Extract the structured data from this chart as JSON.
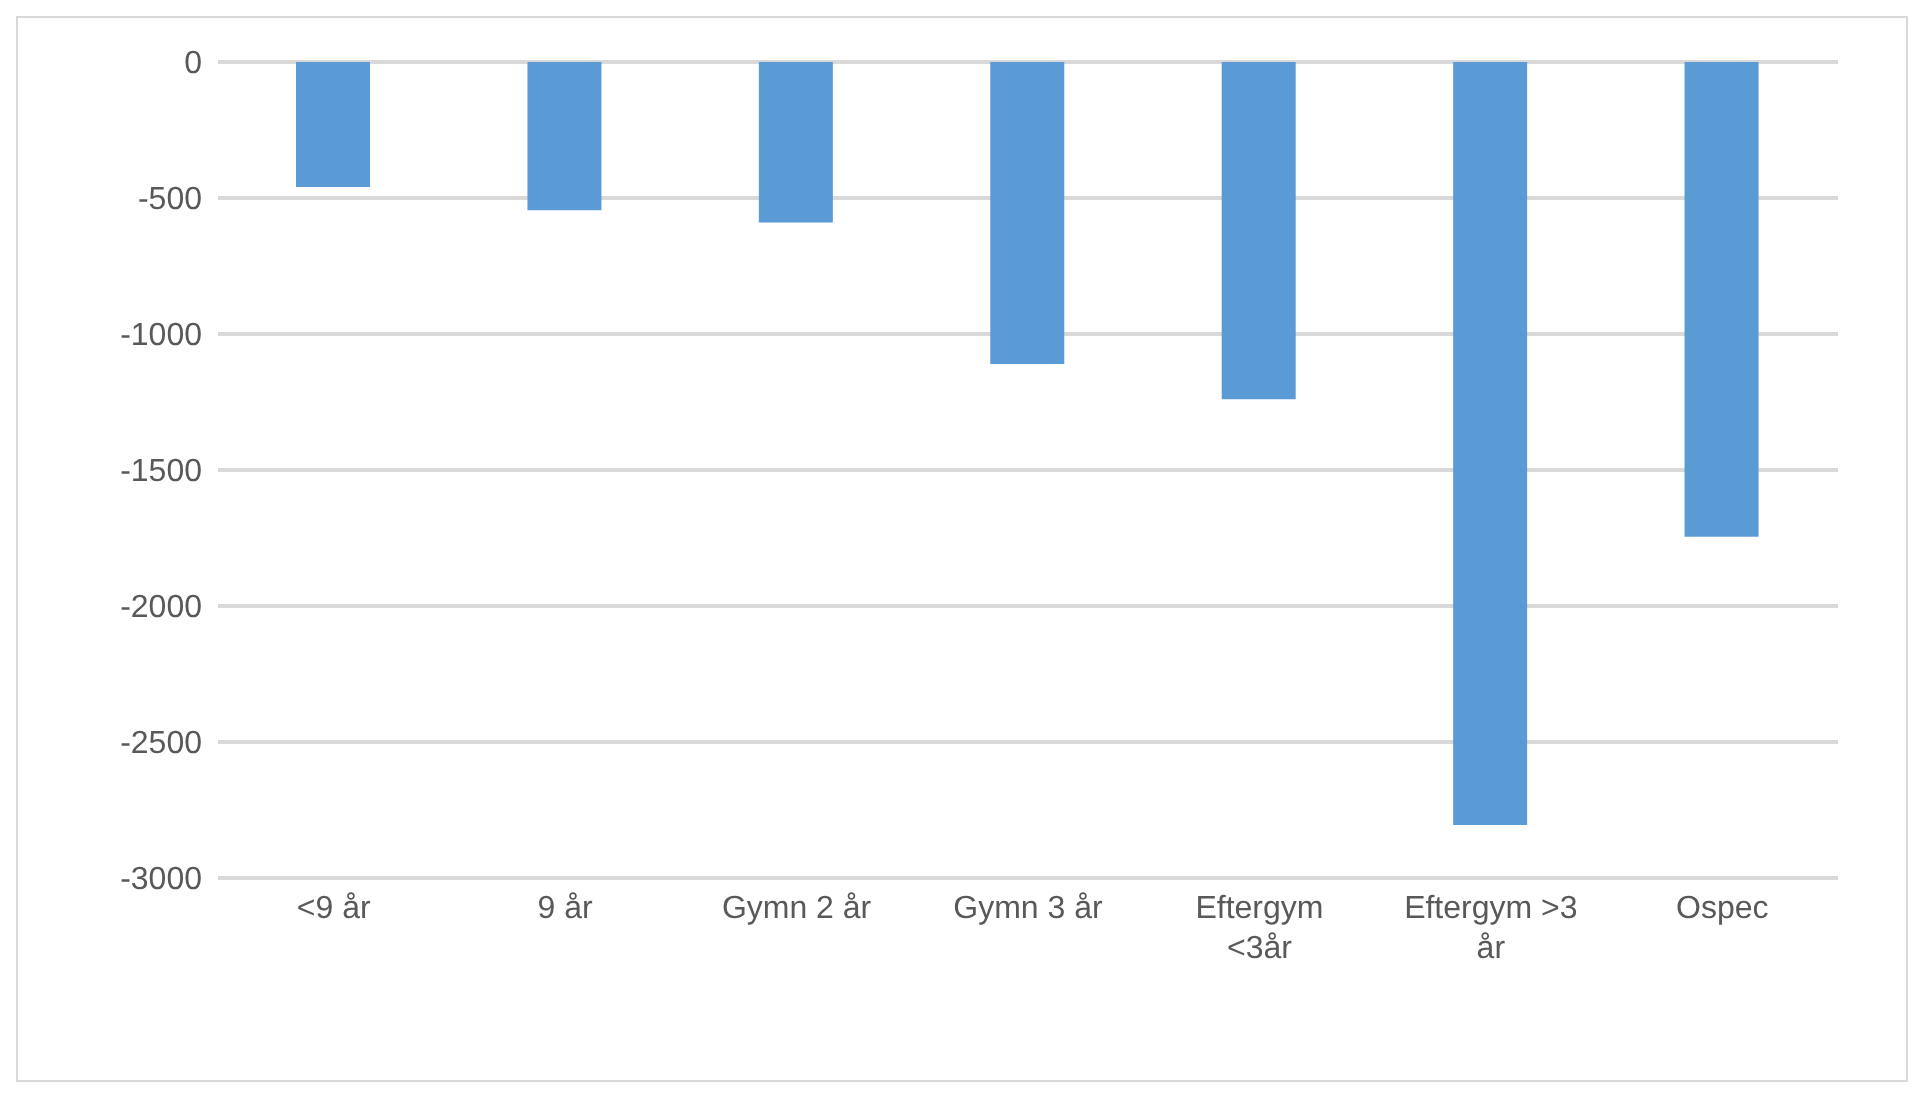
{
  "chart_data": {
    "type": "bar",
    "categories": [
      "<9 år",
      "9 år",
      "Gymn 2 år",
      "Gymn 3 år",
      "Eftergym <3år",
      "Eftergym >3 år",
      "Ospec"
    ],
    "values": [
      -460,
      -545,
      -590,
      -1110,
      -1240,
      -2805,
      -1745
    ],
    "color": "#5b9bd5",
    "ylim": [
      -3000,
      0
    ],
    "yticks": [
      0,
      -500,
      -1000,
      -1500,
      -2000,
      -2500,
      -3000
    ],
    "grid": "y"
  }
}
